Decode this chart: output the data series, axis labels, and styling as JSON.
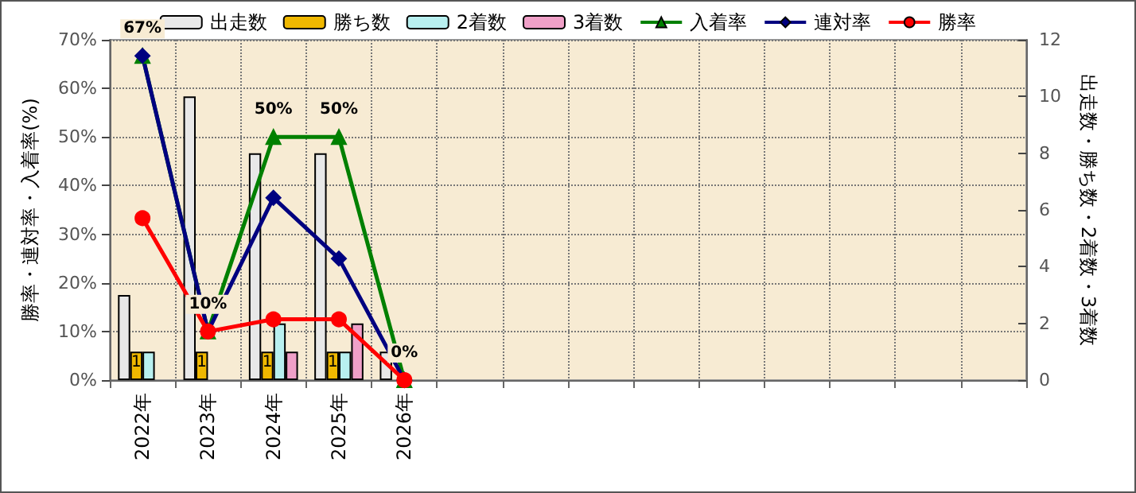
{
  "chart_data": {
    "type": "bar",
    "categories": [
      "2022年",
      "2023年",
      "2024年",
      "2025年",
      "2026年",
      null,
      null,
      null,
      null,
      null,
      null,
      null,
      null,
      null
    ],
    "ylabel": "勝率・連対率・入着率(%)",
    "y2label": "出走数・勝ち数・2着数・3着数",
    "ylim": [
      0,
      70
    ],
    "yticks": [
      {
        "value": 0,
        "label": "0%"
      },
      {
        "value": 10,
        "label": "10%"
      },
      {
        "value": 20,
        "label": "20%"
      },
      {
        "value": 30,
        "label": "30%"
      },
      {
        "value": 40,
        "label": "40%"
      },
      {
        "value": 50,
        "label": "50%"
      },
      {
        "value": 60,
        "label": "60%"
      },
      {
        "value": 70,
        "label": "70%"
      }
    ],
    "y2lim": [
      0,
      12
    ],
    "y2ticks": [
      0,
      2,
      4,
      6,
      8,
      10,
      12
    ],
    "grid": true,
    "legend": "top",
    "series": [
      {
        "name": "出走数",
        "axis": "y2",
        "color": "#e8e8e8",
        "values": [
          3,
          10,
          8,
          8,
          1,
          null,
          null,
          null,
          null,
          null,
          null,
          null,
          null,
          null
        ]
      },
      {
        "name": "勝ち数",
        "axis": "y2",
        "color": "#f0b800",
        "values": [
          1,
          1,
          1,
          1,
          0,
          null,
          null,
          null,
          null,
          null,
          null,
          null,
          null,
          null
        ],
        "value_labels": [
          "1",
          "1",
          "1",
          "1",
          null,
          null,
          null,
          null,
          null,
          null,
          null,
          null,
          null,
          null
        ]
      },
      {
        "name": "2着数",
        "axis": "y2",
        "color": "#b8f0f0",
        "values": [
          1,
          0,
          2,
          1,
          0,
          null,
          null,
          null,
          null,
          null,
          null,
          null,
          null,
          null
        ]
      },
      {
        "name": "3着数",
        "axis": "y2",
        "color": "#f0a0c8",
        "values": [
          0,
          0,
          1,
          2,
          0,
          null,
          null,
          null,
          null,
          null,
          null,
          null,
          null,
          null
        ]
      },
      {
        "name": "入着率",
        "type": "line",
        "marker": "triangle",
        "color": "#008000",
        "values": [
          66.7,
          10,
          50,
          50,
          0,
          null,
          null,
          null,
          null,
          null,
          null,
          null,
          null,
          null
        ],
        "value_labels": [
          "67%",
          "10%",
          "50%",
          "50%",
          "0%",
          null,
          null,
          null,
          null,
          null,
          null,
          null,
          null,
          null
        ]
      },
      {
        "name": "連対率",
        "type": "line",
        "marker": "diamond",
        "color": "#000080",
        "values": [
          66.7,
          10,
          37.5,
          25,
          0,
          null,
          null,
          null,
          null,
          null,
          null,
          null,
          null,
          null
        ]
      },
      {
        "name": "勝率",
        "type": "line",
        "marker": "circle",
        "color": "#ff0000",
        "values": [
          33.3,
          10,
          12.5,
          12.5,
          0,
          null,
          null,
          null,
          null,
          null,
          null,
          null,
          null,
          null
        ]
      }
    ]
  }
}
